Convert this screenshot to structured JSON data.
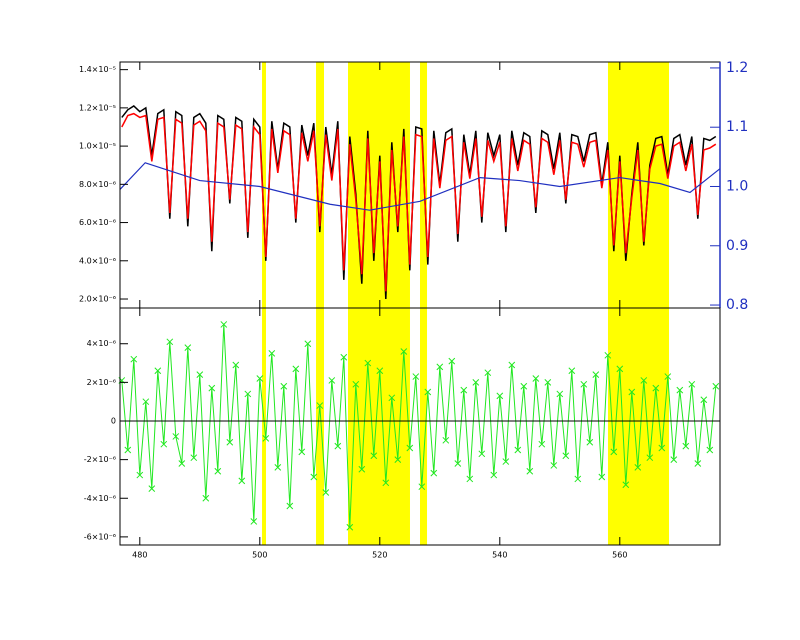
{
  "chart_data": [
    {
      "type": "line",
      "x": [
        477,
        478,
        479,
        480,
        481,
        482,
        483,
        484,
        485,
        486,
        487,
        488,
        489,
        490,
        491,
        492,
        493,
        494,
        495,
        496,
        497,
        498,
        499,
        500,
        501,
        502,
        503,
        504,
        505,
        506,
        507,
        508,
        509,
        510,
        511,
        512,
        513,
        514,
        515,
        516,
        517,
        518,
        519,
        520,
        521,
        522,
        523,
        524,
        525,
        526,
        527,
        528,
        529,
        530,
        531,
        532,
        533,
        534,
        535,
        536,
        537,
        538,
        539,
        540,
        541,
        542,
        543,
        544,
        545,
        546,
        547,
        548,
        549,
        550,
        551,
        552,
        553,
        554,
        555,
        556,
        557,
        558,
        559,
        560,
        561,
        562,
        563,
        564,
        565,
        566,
        567,
        568,
        569,
        570,
        571,
        572,
        573,
        574,
        575,
        576
      ],
      "xlim": [
        476.7,
        576.7
      ],
      "xticks": [
        480,
        500,
        520,
        540,
        560
      ],
      "ylim": [
        1.53e-06,
        1.44e-05
      ],
      "yticks": [
        {
          "value": 1.4e-05,
          "label": "1.4×10⁻⁵"
        },
        {
          "value": 1.2e-05,
          "label": "1.2×10⁻⁵"
        },
        {
          "value": 1e-05,
          "label": "1.0×10⁻⁵"
        },
        {
          "value": 8e-06,
          "label": "8.0×10⁻⁶"
        },
        {
          "value": 6e-06,
          "label": "6.0×10⁻⁶"
        },
        {
          "value": 4e-06,
          "label": "4.0×10⁻⁶"
        },
        {
          "value": 2e-06,
          "label": "2.0×10⁻⁶"
        }
      ],
      "y2lim": [
        0.795,
        1.21
      ],
      "y2ticks": [
        1.2,
        1.1,
        {
          "value": 1.0,
          "label": "1.0"
        },
        0.9,
        0.8
      ],
      "y2color": "#2030c0",
      "shaded_regions": [
        [
          500.37,
          501.03
        ],
        [
          509.37,
          510.7
        ],
        [
          514.7,
          525.03
        ],
        [
          526.7,
          527.87
        ],
        [
          558.03,
          568.2
        ]
      ],
      "shade_color": "#ffff00",
      "series": [
        {
          "color": "#000000",
          "values": [
            1.15e-05,
            1.19e-05,
            1.21e-05,
            1.18e-05,
            1.2e-05,
            9.5e-06,
            1.17e-05,
            1.19e-05,
            6.2e-06,
            1.18e-05,
            1.16e-05,
            5.8e-06,
            1.15e-05,
            1.17e-05,
            1.12e-05,
            4.5e-06,
            1.16e-05,
            1.14e-05,
            7e-06,
            1.15e-05,
            1.13e-05,
            5.2e-06,
            1.14e-05,
            1.1e-05,
            4e-06,
            1.13e-05,
            8.8e-06,
            1.12e-05,
            1.1e-05,
            6e-06,
            1.11e-05,
            9.5e-06,
            1.12e-05,
            5.5e-06,
            1.1e-05,
            8.5e-06,
            1.13e-05,
            3e-06,
            1.05e-05,
            7.5e-06,
            2.8e-06,
            1.08e-05,
            4e-06,
            9.5e-06,
            2e-06,
            1.02e-05,
            5.5e-06,
            1.09e-05,
            3.5e-06,
            1.1e-05,
            1.09e-05,
            3.8e-06,
            1.08e-05,
            8e-06,
            1.07e-05,
            1.09e-05,
            5e-06,
            1.06e-05,
            8.5e-06,
            1.08e-05,
            6e-06,
            1.07e-05,
            9.5e-06,
            1.06e-05,
            5.5e-06,
            1.08e-05,
            9e-06,
            1.07e-05,
            1.05e-05,
            6.5e-06,
            1.08e-05,
            1.06e-05,
            8.8e-06,
            1.07e-05,
            7e-06,
            1.06e-05,
            1.05e-05,
            9.2e-06,
            1.06e-05,
            1.07e-05,
            8e-06,
            1.02e-05,
            4.5e-06,
            9.5e-06,
            4e-06,
            7.5e-06,
            1.02e-05,
            4.8e-06,
            9e-06,
            1.04e-05,
            1.05e-05,
            8.5e-06,
            1.04e-05,
            1.06e-05,
            9e-06,
            1.05e-05,
            6.2e-06,
            1.04e-05,
            1.03e-05,
            1.05e-05
          ]
        },
        {
          "color": "#ff0000",
          "values": [
            1.1e-05,
            1.16e-05,
            1.17e-05,
            1.15e-05,
            1.16e-05,
            9.2e-06,
            1.14e-05,
            1.15e-05,
            6.5e-06,
            1.14e-05,
            1.12e-05,
            6.2e-06,
            1.11e-05,
            1.13e-05,
            1.08e-05,
            5e-06,
            1.12e-05,
            1.1e-05,
            7.2e-06,
            1.11e-05,
            1.09e-05,
            5.5e-06,
            1.1e-05,
            1.06e-05,
            4.2e-06,
            1.09e-05,
            8.6e-06,
            1.08e-05,
            1.06e-05,
            6.2e-06,
            1.07e-05,
            9.2e-06,
            1.08e-05,
            5.8e-06,
            1.06e-05,
            8.2e-06,
            1.09e-05,
            3.5e-06,
            1.01e-05,
            7.2e-06,
            3.3e-06,
            1.04e-05,
            4.4e-06,
            9.2e-06,
            2.4e-06,
            9.8e-06,
            5.8e-06,
            1.05e-05,
            3.8e-06,
            1.06e-05,
            1.05e-05,
            4.2e-06,
            1.04e-05,
            7.8e-06,
            1.03e-05,
            1.05e-05,
            5.4e-06,
            1.02e-05,
            8.3e-06,
            1.04e-05,
            6.3e-06,
            1.03e-05,
            9.2e-06,
            1.02e-05,
            5.8e-06,
            1.04e-05,
            8.7e-06,
            1.03e-05,
            1.01e-05,
            6.8e-06,
            1.04e-05,
            1.02e-05,
            8.5e-06,
            1.03e-05,
            7.2e-06,
            1.02e-05,
            1.01e-05,
            8.9e-06,
            1.02e-05,
            1.03e-05,
            7.8e-06,
            9.8e-06,
            4.8e-06,
            9.2e-06,
            4.4e-06,
            7.3e-06,
            9.8e-06,
            5e-06,
            8.8e-06,
            1e-05,
            1.01e-05,
            8.3e-06,
            1e-05,
            1.02e-05,
            8.7e-06,
            1.01e-05,
            6.4e-06,
            9.8e-06,
            9.9e-06,
            1.01e-05
          ]
        },
        {
          "color": "#2030c0",
          "axis": "y2",
          "x": [
            476.7,
            480.9,
            490,
            500,
            511.7,
            518.3,
            526.7,
            536.7,
            543.3,
            550,
            560,
            566.7,
            571.7,
            576.7
          ],
          "values": [
            0.995,
            1.04,
            1.01,
            1.0,
            0.97,
            0.96,
            0.975,
            1.015,
            1.01,
            1.0,
            1.015,
            1.005,
            0.99,
            1.03
          ]
        }
      ]
    },
    {
      "type": "scatter",
      "x": [
        477,
        478,
        479,
        480,
        481,
        482,
        483,
        484,
        485,
        486,
        487,
        488,
        489,
        490,
        491,
        492,
        493,
        494,
        495,
        496,
        497,
        498,
        499,
        500,
        501,
        502,
        503,
        504,
        505,
        506,
        507,
        508,
        509,
        510,
        511,
        512,
        513,
        514,
        515,
        516,
        517,
        518,
        519,
        520,
        521,
        522,
        523,
        524,
        525,
        526,
        527,
        528,
        529,
        530,
        531,
        532,
        533,
        534,
        535,
        536,
        537,
        538,
        539,
        540,
        541,
        542,
        543,
        544,
        545,
        546,
        547,
        548,
        549,
        550,
        551,
        552,
        553,
        554,
        555,
        556,
        557,
        558,
        559,
        560,
        561,
        562,
        563,
        564,
        565,
        566,
        567,
        568,
        569,
        570,
        571,
        572,
        573,
        574,
        575,
        576
      ],
      "xlim": [
        476.7,
        576.7
      ],
      "xticks": [
        480,
        500,
        520,
        540,
        560
      ],
      "ylim": [
        -6.42e-06,
        5.85e-06
      ],
      "yticks": [
        {
          "value": 4e-06,
          "label": "4×10⁻⁶"
        },
        {
          "value": 2e-06,
          "label": "2×10⁻⁶"
        },
        0,
        {
          "value": -2e-06,
          "label": "-2×10⁻⁶"
        },
        {
          "value": -4e-06,
          "label": "-4×10⁻⁶"
        },
        {
          "value": -6e-06,
          "label": "-6×10⁻⁶"
        }
      ],
      "color": "#22e822",
      "zero_line_color": "#000000",
      "values": [
        2.1e-06,
        -1.5e-06,
        3.2e-06,
        -2.8e-06,
        1e-06,
        -3.5e-06,
        2.6e-06,
        -1.2e-06,
        4.1e-06,
        -8e-07,
        -2.2e-06,
        3.8e-06,
        -1.9e-06,
        2.4e-06,
        -4e-06,
        1.7e-06,
        -2.6e-06,
        5e-06,
        -1.1e-06,
        2.9e-06,
        -3.1e-06,
        1.4e-06,
        -5.2e-06,
        2.2e-06,
        -9e-07,
        3.5e-06,
        -2.4e-06,
        1.8e-06,
        -4.4e-06,
        2.7e-06,
        -1.6e-06,
        4e-06,
        -2.9e-06,
        8e-07,
        -3.7e-06,
        2.1e-06,
        -1.3e-06,
        3.3e-06,
        -5.5e-06,
        1.9e-06,
        -2.5e-06,
        3e-06,
        -1.8e-06,
        2.6e-06,
        -3.2e-06,
        1.2e-06,
        -2e-06,
        3.6e-06,
        -1.4e-06,
        2.3e-06,
        -3.4e-06,
        1.5e-06,
        -2.7e-06,
        2.8e-06,
        -1e-06,
        3.1e-06,
        -2.2e-06,
        1.6e-06,
        -3e-06,
        2e-06,
        -1.7e-06,
        2.5e-06,
        -2.8e-06,
        1.3e-06,
        -2.1e-06,
        2.9e-06,
        -1.5e-06,
        1.8e-06,
        -2.6e-06,
        2.2e-06,
        -1.2e-06,
        2e-06,
        -2.3e-06,
        1.4e-06,
        -1.8e-06,
        2.6e-06,
        -3e-06,
        1.9e-06,
        -1.1e-06,
        2.4e-06,
        -2.9e-06,
        3.4e-06,
        -1.6e-06,
        2.7e-06,
        -3.3e-06,
        1.5e-06,
        -2.4e-06,
        2.1e-06,
        -1.9e-06,
        1.7e-06,
        -1.4e-06,
        2.3e-06,
        -2e-06,
        1.6e-06,
        -1.3e-06,
        1.9e-06,
        -2.2e-06,
        1.1e-06,
        -1.5e-06,
        1.8e-06
      ]
    }
  ]
}
